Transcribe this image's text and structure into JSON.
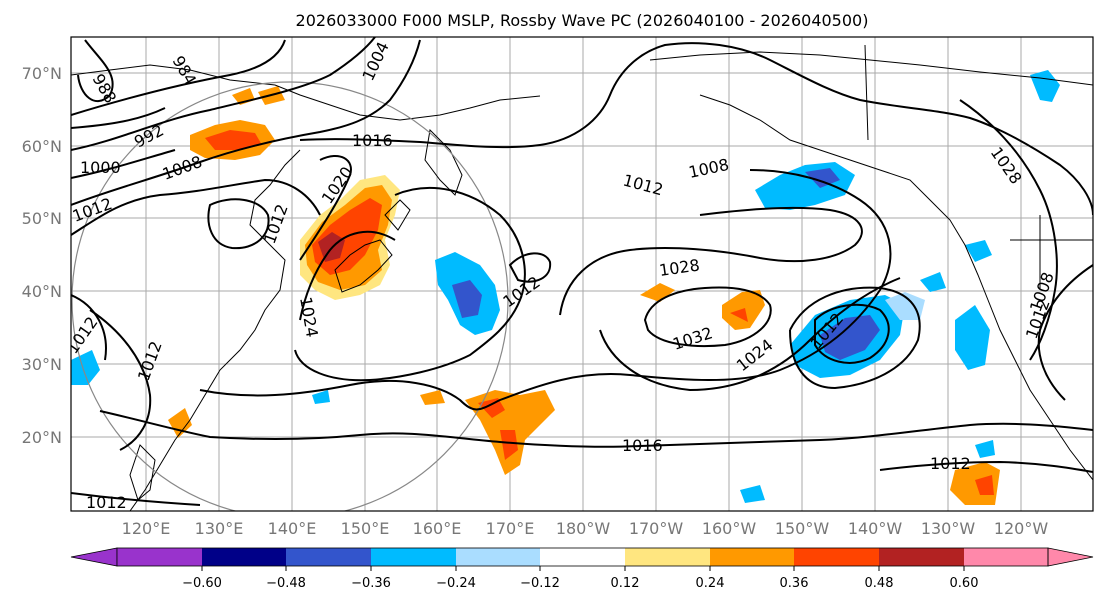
{
  "title": "2026033000 F000 MSLP, Rossby Wave PC (2026040100 - 2026040500)",
  "lat_labels": [
    "70°N",
    "60°N",
    "50°N",
    "40°N",
    "30°N",
    "20°N"
  ],
  "lon_labels": [
    "120°E",
    "130°E",
    "140°E",
    "150°E",
    "160°E",
    "170°E",
    "180°W",
    "170°W",
    "160°W",
    "150°W",
    "140°W",
    "130°W",
    "120°W"
  ],
  "contour_labels": [
    "988",
    "984",
    "992",
    "1000",
    "1008",
    "1016",
    "1004",
    "1012",
    "1020",
    "1012",
    "1024",
    "1012",
    "1012",
    "1008",
    "1012",
    "1028",
    "1032",
    "1024",
    "1012",
    "1016",
    "1012",
    "1028",
    "1012",
    "1008",
    "1012",
    "1012"
  ],
  "colorbar": {
    "ticks": [
      "−0.60",
      "−0.48",
      "−0.36",
      "−0.24",
      "−0.12",
      "0.12",
      "0.24",
      "0.36",
      "0.48",
      "0.60"
    ],
    "colors": [
      "#9933cc",
      "#000088",
      "#3355cc",
      "#00bbff",
      "#aaddff",
      "#ffffff",
      "#ffe680",
      "#ff9900",
      "#ff4400",
      "#b22222",
      "#ff88aa"
    ]
  },
  "palette": {
    "neg_strong": "#3355cc",
    "neg_mid": "#00bbff",
    "neg_weak": "#aaddff",
    "pos_weak": "#ffe680",
    "pos_mid": "#ff9900",
    "pos_strong": "#ff4400",
    "pos_max": "#b22222"
  }
}
